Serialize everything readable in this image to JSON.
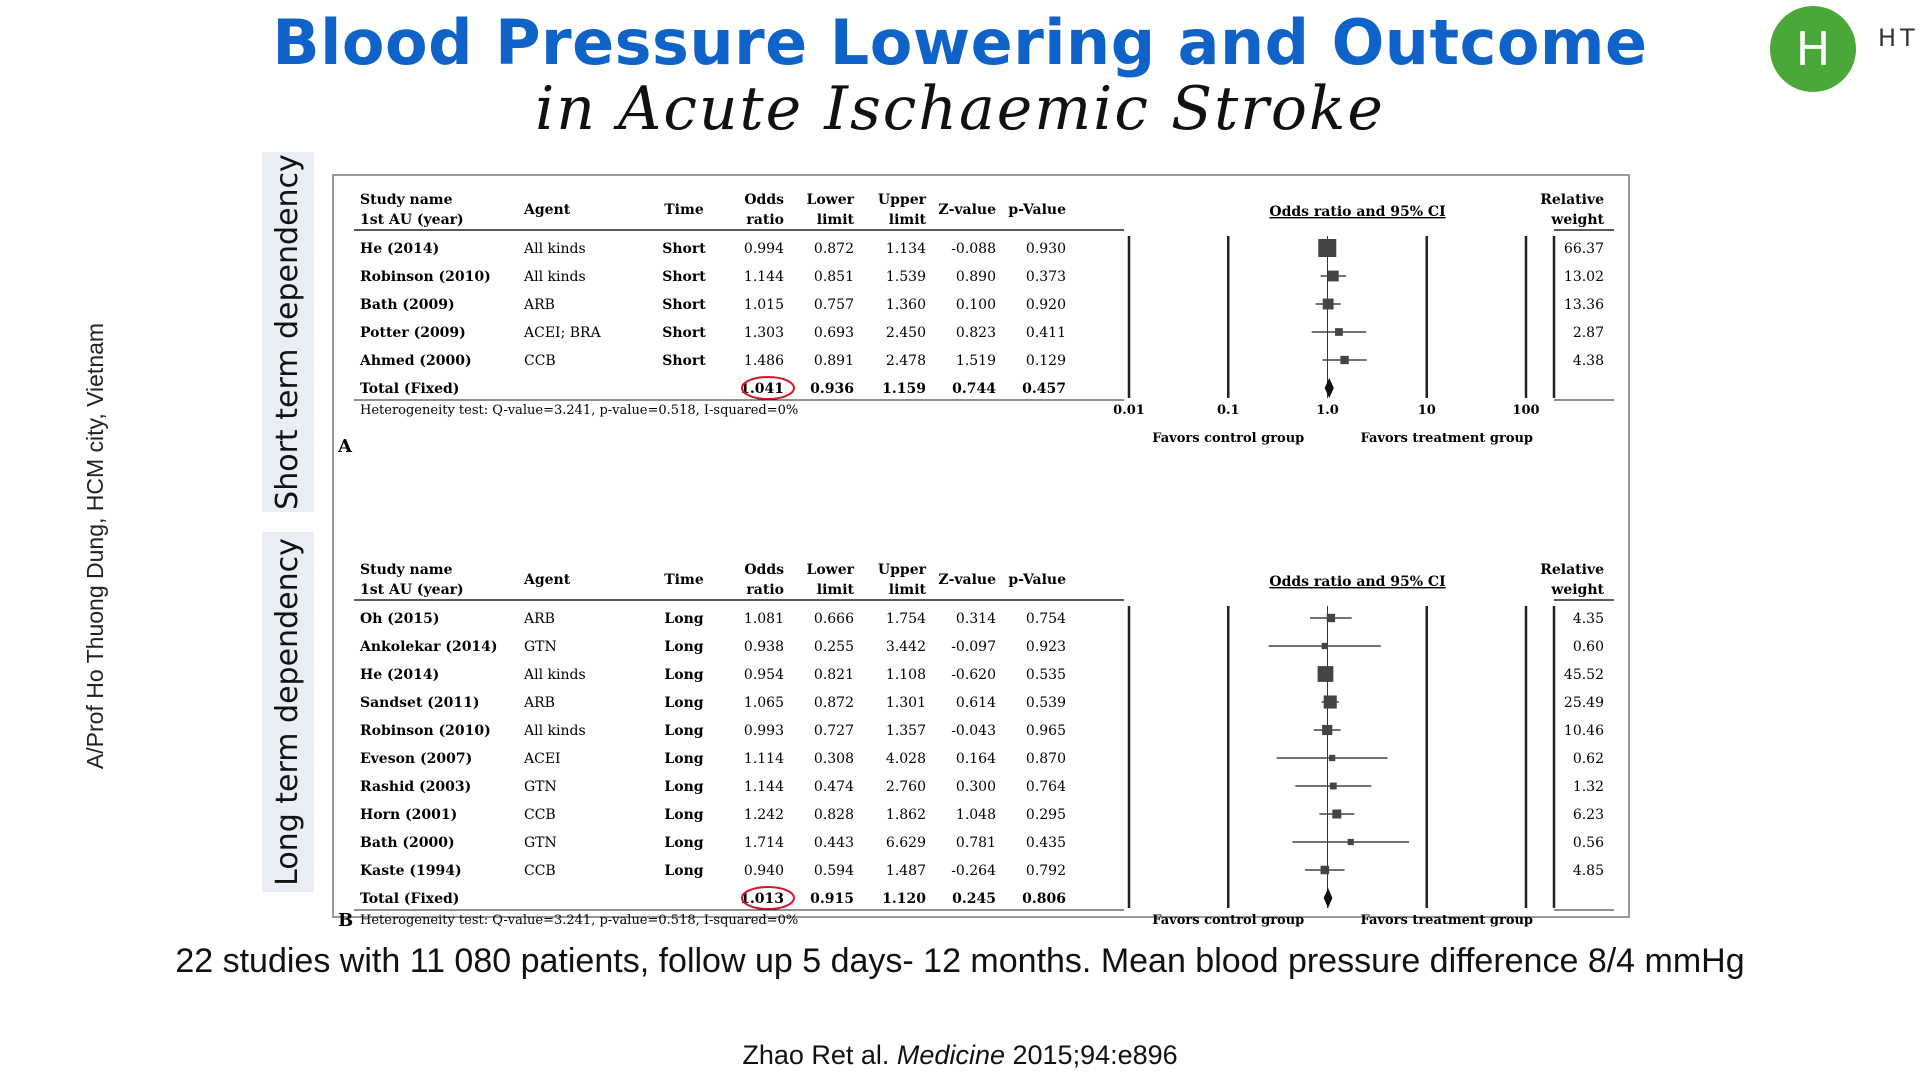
{
  "header": {
    "title_line1": "Blood Pressure Lowering and Outcome",
    "title_line2": "in Acute Ischaemic Stroke",
    "logo_letter": "H",
    "logo_text": "HT"
  },
  "side_credit": "A/Prof Ho Thuong Dung, HCM city, Vietnam",
  "panel_labels": {
    "short": "Short term dependency",
    "long": "Long term dependency"
  },
  "summary": "22 studies with 11 080 patients, follow up 5 days- 12 months. Mean blood pressure difference 8/4 mmHg",
  "citation": {
    "authors": "Zhao Ret al.",
    "journal": "Medicine",
    "ref": "2015;94:e896"
  },
  "colors": {
    "title": "#0f62c8",
    "logo": "#4aa838",
    "highlight": "#d11a2a",
    "label_bg": "#e9edf4"
  },
  "chart_data": {
    "type": "forest",
    "x_scale": "log",
    "xlim": [
      0.01,
      100
    ],
    "ticks": [
      "0.01",
      "0.1",
      "1.0",
      "10",
      "100"
    ],
    "columns": [
      "Study name\n1st AU (year)",
      "Agent",
      "Time",
      "Odds\nratio",
      "Lower\nlimit",
      "Upper\nlimit",
      "Z-value",
      "p-Value"
    ],
    "plot_header": "Odds ratio and 95% CI",
    "weight_header": "Relative\nweight",
    "favors_left": "Favors control group",
    "favors_right": "Favors treatment group",
    "panels": [
      {
        "letter": "A",
        "heterogeneity": "Heterogeneity test: Q-value=3.241, p-value=0.518, I-squared=0%",
        "show_ticks": true,
        "rows": [
          {
            "study": "He (2014)",
            "agent": "All kinds",
            "time": "Short",
            "or": "0.994",
            "lower": "0.872",
            "upper": "1.134",
            "z": "-0.088",
            "p": "0.930",
            "weight": "66.37"
          },
          {
            "study": "Robinson (2010)",
            "agent": "All kinds",
            "time": "Short",
            "or": "1.144",
            "lower": "0.851",
            "upper": "1.539",
            "z": "0.890",
            "p": "0.373",
            "weight": "13.02"
          },
          {
            "study": "Bath (2009)",
            "agent": "ARB",
            "time": "Short",
            "or": "1.015",
            "lower": "0.757",
            "upper": "1.360",
            "z": "0.100",
            "p": "0.920",
            "weight": "13.36"
          },
          {
            "study": "Potter (2009)",
            "agent": "ACEI; BRA",
            "time": "Short",
            "or": "1.303",
            "lower": "0.693",
            "upper": "2.450",
            "z": "0.823",
            "p": "0.411",
            "weight": "2.87"
          },
          {
            "study": "Ahmed (2000)",
            "agent": "CCB",
            "time": "Short",
            "or": "1.486",
            "lower": "0.891",
            "upper": "2.478",
            "z": "1.519",
            "p": "0.129",
            "weight": "4.38"
          }
        ],
        "total": {
          "study": "Total (Fixed)",
          "or": "1.041",
          "lower": "0.936",
          "upper": "1.159",
          "z": "0.744",
          "p": "0.457"
        }
      },
      {
        "letter": "B",
        "heterogeneity": "Heterogeneity test: Q-value=3.241, p-value=0.518, I-squared=0%",
        "show_ticks": false,
        "rows": [
          {
            "study": "Oh (2015)",
            "agent": "ARB",
            "time": "Long",
            "or": "1.081",
            "lower": "0.666",
            "upper": "1.754",
            "z": "0.314",
            "p": "0.754",
            "weight": "4.35"
          },
          {
            "study": "Ankolekar (2014)",
            "agent": "GTN",
            "time": "Long",
            "or": "0.938",
            "lower": "0.255",
            "upper": "3.442",
            "z": "-0.097",
            "p": "0.923",
            "weight": "0.60"
          },
          {
            "study": "He (2014)",
            "agent": "All kinds",
            "time": "Long",
            "or": "0.954",
            "lower": "0.821",
            "upper": "1.108",
            "z": "-0.620",
            "p": "0.535",
            "weight": "45.52"
          },
          {
            "study": "Sandset (2011)",
            "agent": "ARB",
            "time": "Long",
            "or": "1.065",
            "lower": "0.872",
            "upper": "1.301",
            "z": "0.614",
            "p": "0.539",
            "weight": "25.49"
          },
          {
            "study": "Robinson (2010)",
            "agent": "All kinds",
            "time": "Long",
            "or": "0.993",
            "lower": "0.727",
            "upper": "1.357",
            "z": "-0.043",
            "p": "0.965",
            "weight": "10.46"
          },
          {
            "study": "Eveson (2007)",
            "agent": "ACEI",
            "time": "Long",
            "or": "1.114",
            "lower": "0.308",
            "upper": "4.028",
            "z": "0.164",
            "p": "0.870",
            "weight": "0.62"
          },
          {
            "study": "Rashid (2003)",
            "agent": "GTN",
            "time": "Long",
            "or": "1.144",
            "lower": "0.474",
            "upper": "2.760",
            "z": "0.300",
            "p": "0.764",
            "weight": "1.32"
          },
          {
            "study": "Horn (2001)",
            "agent": "CCB",
            "time": "Long",
            "or": "1.242",
            "lower": "0.828",
            "upper": "1.862",
            "z": "1.048",
            "p": "0.295",
            "weight": "6.23"
          },
          {
            "study": "Bath (2000)",
            "agent": "GTN",
            "time": "Long",
            "or": "1.714",
            "lower": "0.443",
            "upper": "6.629",
            "z": "0.781",
            "p": "0.435",
            "weight": "0.56"
          },
          {
            "study": "Kaste (1994)",
            "agent": "CCB",
            "time": "Long",
            "or": "0.940",
            "lower": "0.594",
            "upper": "1.487",
            "z": "-0.264",
            "p": "0.792",
            "weight": "4.85"
          }
        ],
        "total": {
          "study": "Total (Fixed)",
          "or": "1.013",
          "lower": "0.915",
          "upper": "1.120",
          "z": "0.245",
          "p": "0.806"
        }
      }
    ]
  }
}
